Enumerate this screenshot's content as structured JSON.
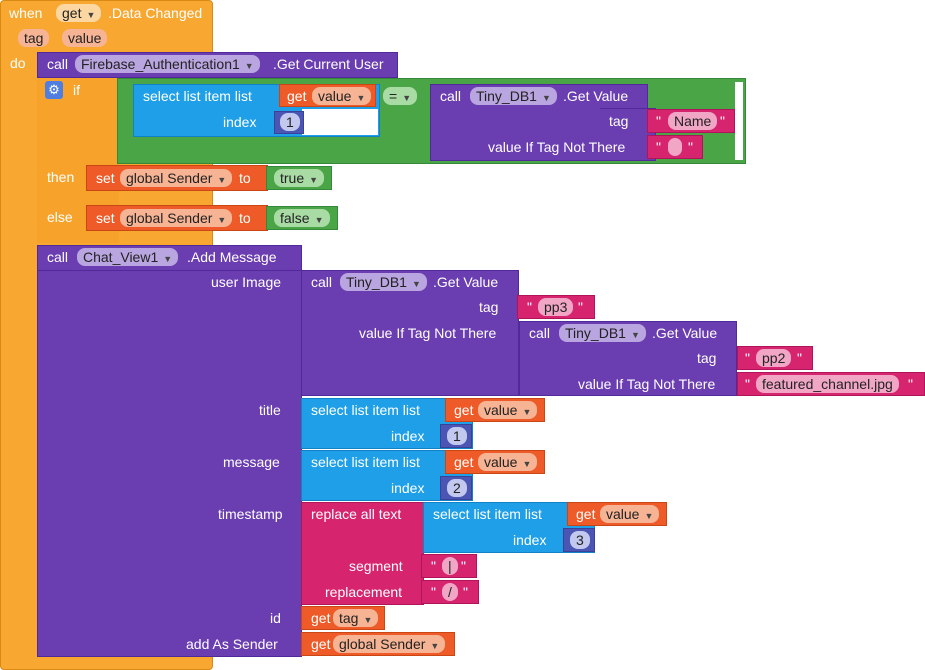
{
  "event": {
    "when": "when",
    "component": "get",
    "event_name": ".Data Changed",
    "params": [
      "tag",
      "value"
    ],
    "do": "do"
  },
  "auth": {
    "call": "call",
    "component": "Firebase_Authentication1",
    "method": ".Get Current User"
  },
  "if_block": {
    "if": "if",
    "then": "then",
    "else": "else"
  },
  "select1": {
    "label": "select list item  list",
    "index_label": "index",
    "get": "get",
    "var": "value",
    "index": "1"
  },
  "eq": "=",
  "tinydb_name": {
    "call": "call",
    "component": "Tiny_DB1",
    "method": ".Get Value",
    "tag_label": "tag",
    "tag": "Name",
    "default_label": "value If Tag Not There",
    "default": ""
  },
  "set_true": {
    "set": "set",
    "var": "global Sender",
    "to": "to",
    "value": "true"
  },
  "set_false": {
    "set": "set",
    "var": "global Sender",
    "to": "to",
    "value": "false"
  },
  "chat": {
    "call": "call",
    "component": "Chat_View1",
    "method": ".Add Message",
    "user_image": "user Image",
    "title": "title",
    "message": "message",
    "timestamp": "timestamp",
    "id": "id",
    "add_as_sender": "add As Sender"
  },
  "tinydb_pp3": {
    "call": "call",
    "component": "Tiny_DB1",
    "method": ".Get Value",
    "tag_label": "tag",
    "tag": "pp3",
    "default_label": "value If Tag Not There"
  },
  "tinydb_pp2": {
    "call": "call",
    "component": "Tiny_DB1",
    "method": ".Get Value",
    "tag_label": "tag",
    "tag": "pp2",
    "default_label": "value If Tag Not There",
    "default": "featured_channel.jpg"
  },
  "select_title": {
    "label": "select list item  list",
    "get": "get",
    "var": "value",
    "index_label": "index",
    "index": "1"
  },
  "select_msg": {
    "label": "select list item  list",
    "get": "get",
    "var": "value",
    "index_label": "index",
    "index": "2"
  },
  "replace": {
    "label": "replace all text",
    "segment_label": "segment",
    "segment": "|",
    "replacement_label": "replacement",
    "replacement": "/"
  },
  "select_ts": {
    "label": "select list item  list",
    "get": "get",
    "var": "value",
    "index_label": "index",
    "index": "3"
  },
  "id_get": {
    "get": "get",
    "var": "tag"
  },
  "sender_get": {
    "get": "get",
    "var": "global Sender"
  },
  "quote": "\"",
  "gear": "⚙",
  "caret": "▼"
}
